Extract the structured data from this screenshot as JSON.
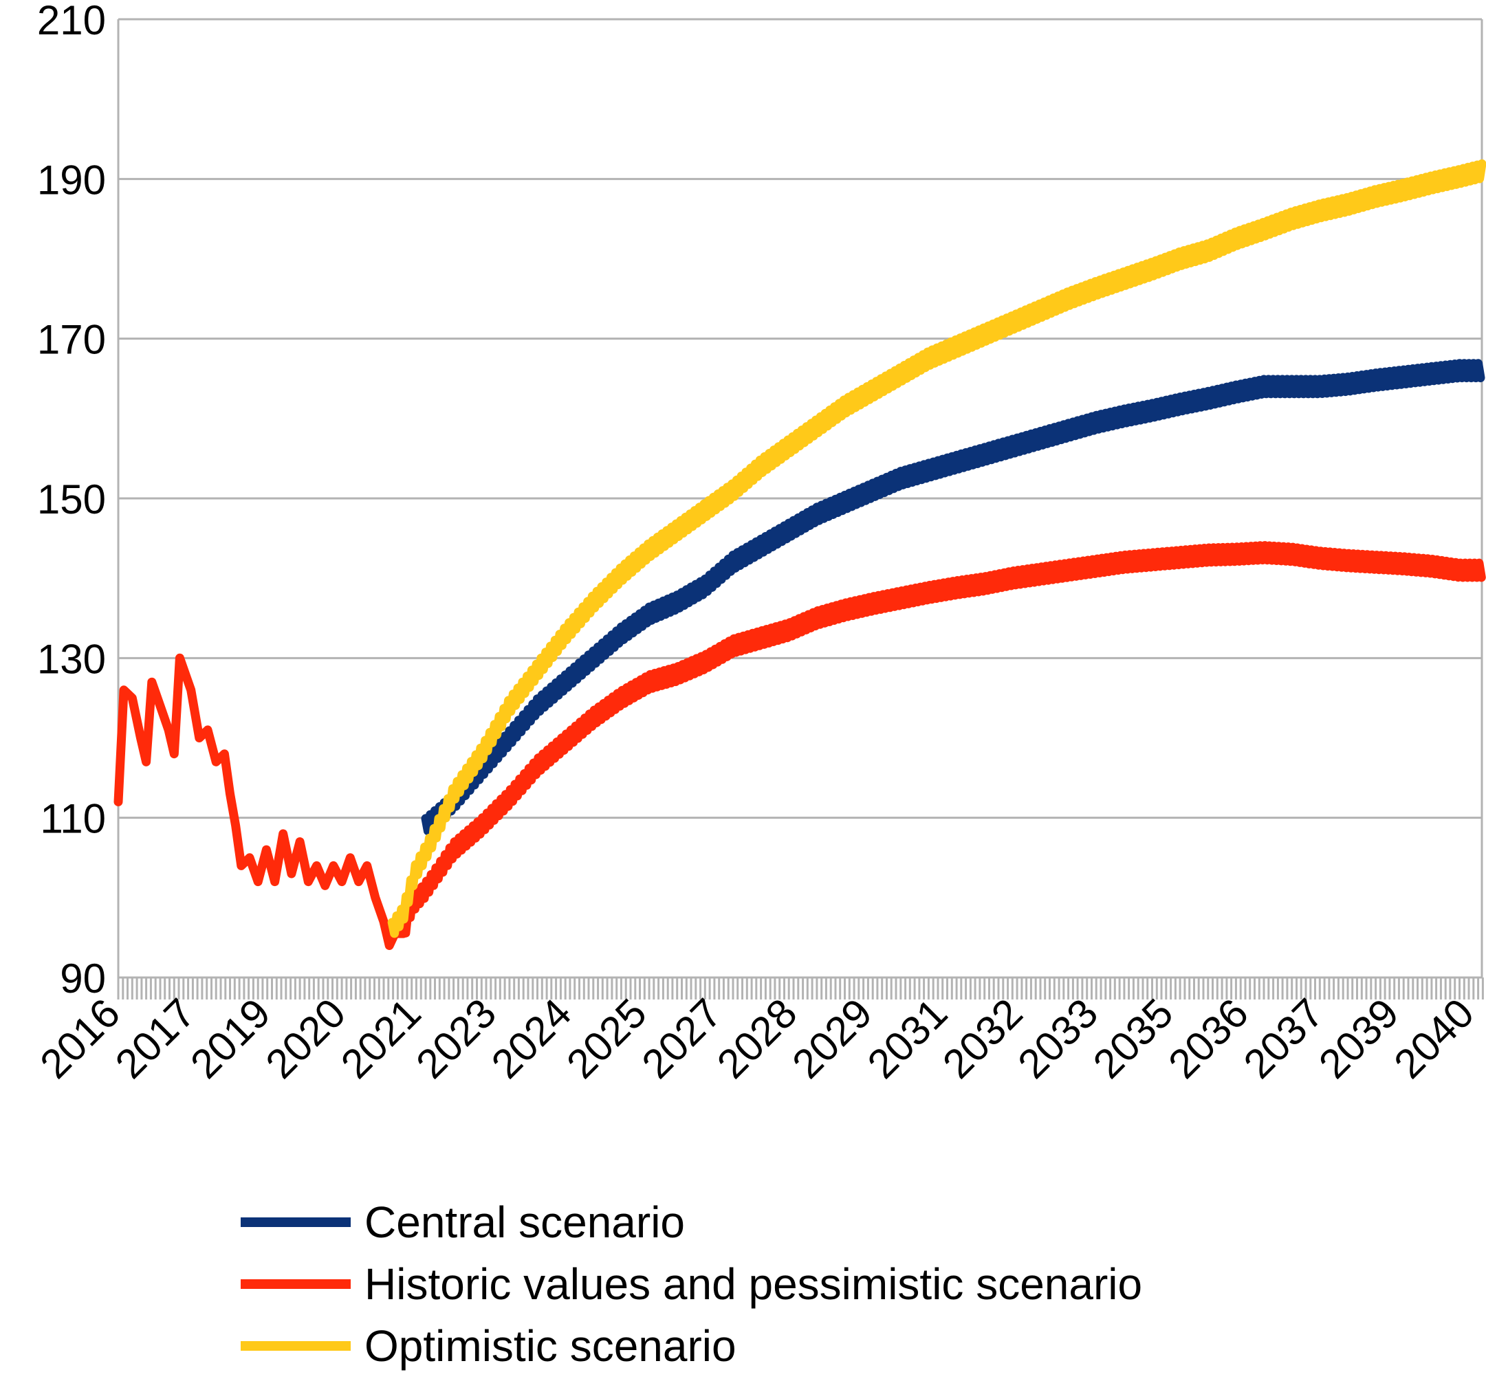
{
  "chart_data": {
    "type": "line",
    "title": "",
    "xlabel": "",
    "ylabel": "",
    "ylim": [
      90,
      210
    ],
    "yticks": [
      90,
      110,
      130,
      150,
      170,
      190,
      210
    ],
    "xlim": [
      2016.0,
      2040.4
    ],
    "x_tick_labels": [
      "2016",
      "2017",
      "2019",
      "2020",
      "2021",
      "2023",
      "2024",
      "2025",
      "2027",
      "2028",
      "2029",
      "2031",
      "2032",
      "2033",
      "2035",
      "2036",
      "2037",
      "2039",
      "2040"
    ],
    "grid": "horizontal",
    "legend_position": "bottom",
    "series": [
      {
        "name": "Central scenario",
        "color": "#0b3277",
        "points": [
          [
            2021.5,
            109
          ],
          [
            2022.0,
            112
          ],
          [
            2022.5,
            116
          ],
          [
            2023.0,
            120
          ],
          [
            2023.5,
            124
          ],
          [
            2024.0,
            127
          ],
          [
            2024.5,
            130
          ],
          [
            2025.0,
            133
          ],
          [
            2025.5,
            135.5
          ],
          [
            2026.0,
            137
          ],
          [
            2026.5,
            139
          ],
          [
            2027.0,
            142
          ],
          [
            2027.5,
            144
          ],
          [
            2028.0,
            146
          ],
          [
            2028.5,
            148
          ],
          [
            2029.0,
            149.5
          ],
          [
            2029.5,
            151
          ],
          [
            2030.0,
            152.5
          ],
          [
            2030.5,
            153.5
          ],
          [
            2031.0,
            154.5
          ],
          [
            2031.5,
            155.5
          ],
          [
            2032.0,
            156.5
          ],
          [
            2032.5,
            157.5
          ],
          [
            2033.0,
            158.5
          ],
          [
            2033.5,
            159.5
          ],
          [
            2034.0,
            160.3
          ],
          [
            2034.5,
            161
          ],
          [
            2035.0,
            161.8
          ],
          [
            2035.5,
            162.5
          ],
          [
            2036.0,
            163.3
          ],
          [
            2036.5,
            164
          ],
          [
            2037.0,
            164
          ],
          [
            2037.5,
            164
          ],
          [
            2038.0,
            164.3
          ],
          [
            2038.5,
            164.8
          ],
          [
            2039.0,
            165.2
          ],
          [
            2039.5,
            165.6
          ],
          [
            2040.0,
            166
          ],
          [
            2040.4,
            166
          ]
        ]
      },
      {
        "name": "Historic values and pessimistic scenario",
        "color": "#ff2a0a",
        "points": [
          [
            2016.0,
            112
          ],
          [
            2016.1,
            126
          ],
          [
            2016.25,
            125
          ],
          [
            2016.4,
            120
          ],
          [
            2016.5,
            117
          ],
          [
            2016.6,
            127
          ],
          [
            2016.75,
            124
          ],
          [
            2016.9,
            121
          ],
          [
            2017.0,
            118
          ],
          [
            2017.1,
            130
          ],
          [
            2017.3,
            126
          ],
          [
            2017.45,
            120
          ],
          [
            2017.6,
            121
          ],
          [
            2017.75,
            117
          ],
          [
            2017.9,
            118
          ],
          [
            2018.0,
            113
          ],
          [
            2018.1,
            109
          ],
          [
            2018.2,
            104
          ],
          [
            2018.35,
            105
          ],
          [
            2018.5,
            102
          ],
          [
            2018.65,
            106
          ],
          [
            2018.8,
            102
          ],
          [
            2018.95,
            108
          ],
          [
            2019.1,
            103
          ],
          [
            2019.25,
            107
          ],
          [
            2019.4,
            102
          ],
          [
            2019.55,
            104
          ],
          [
            2019.7,
            101.5
          ],
          [
            2019.85,
            104
          ],
          [
            2020.0,
            102
          ],
          [
            2020.15,
            105
          ],
          [
            2020.3,
            102
          ],
          [
            2020.45,
            104
          ],
          [
            2020.6,
            100
          ],
          [
            2020.75,
            97
          ],
          [
            2020.85,
            94
          ],
          [
            2020.95,
            95.5
          ],
          [
            2021.1,
            95.5
          ],
          [
            2021.25,
            99
          ],
          [
            2021.5,
            101
          ],
          [
            2021.75,
            103.5
          ],
          [
            2022.0,
            106
          ],
          [
            2022.5,
            109
          ],
          [
            2023.0,
            112.5
          ],
          [
            2023.5,
            116.5
          ],
          [
            2024.0,
            119.5
          ],
          [
            2024.5,
            122.5
          ],
          [
            2025.0,
            125
          ],
          [
            2025.5,
            127
          ],
          [
            2026.0,
            128
          ],
          [
            2026.5,
            129.5
          ],
          [
            2027.0,
            131.5
          ],
          [
            2027.5,
            132.5
          ],
          [
            2028.0,
            133.5
          ],
          [
            2028.5,
            135
          ],
          [
            2029.0,
            136
          ],
          [
            2029.5,
            136.8
          ],
          [
            2030.0,
            137.5
          ],
          [
            2030.5,
            138.2
          ],
          [
            2031.0,
            138.8
          ],
          [
            2031.5,
            139.3
          ],
          [
            2032.0,
            140
          ],
          [
            2032.5,
            140.5
          ],
          [
            2033.0,
            141
          ],
          [
            2033.5,
            141.5
          ],
          [
            2034.0,
            142
          ],
          [
            2034.5,
            142.3
          ],
          [
            2035.0,
            142.6
          ],
          [
            2035.5,
            142.9
          ],
          [
            2036.0,
            143
          ],
          [
            2036.5,
            143.2
          ],
          [
            2037.0,
            143
          ],
          [
            2037.5,
            142.5
          ],
          [
            2038.0,
            142.2
          ],
          [
            2038.5,
            142
          ],
          [
            2039.0,
            141.8
          ],
          [
            2039.5,
            141.5
          ],
          [
            2040.0,
            141
          ],
          [
            2040.4,
            141
          ]
        ]
      },
      {
        "name": "Optimistic scenario",
        "color": "#ffc919",
        "points": [
          [
            2020.9,
            96
          ],
          [
            2021.1,
            98
          ],
          [
            2021.3,
            103
          ],
          [
            2021.6,
            107
          ],
          [
            2022.0,
            113
          ],
          [
            2022.5,
            118
          ],
          [
            2023.0,
            124
          ],
          [
            2023.5,
            128.5
          ],
          [
            2024.0,
            133
          ],
          [
            2024.5,
            137
          ],
          [
            2025.0,
            140.5
          ],
          [
            2025.5,
            143.5
          ],
          [
            2026.0,
            146
          ],
          [
            2026.5,
            148.5
          ],
          [
            2027.0,
            151
          ],
          [
            2027.5,
            154
          ],
          [
            2028.0,
            156.5
          ],
          [
            2028.5,
            159
          ],
          [
            2029.0,
            161.5
          ],
          [
            2029.5,
            163.5
          ],
          [
            2030.0,
            165.5
          ],
          [
            2030.5,
            167.5
          ],
          [
            2031.0,
            169
          ],
          [
            2031.5,
            170.5
          ],
          [
            2032.0,
            172
          ],
          [
            2032.5,
            173.5
          ],
          [
            2033.0,
            175
          ],
          [
            2033.5,
            176.3
          ],
          [
            2034.0,
            177.5
          ],
          [
            2034.5,
            178.7
          ],
          [
            2035.0,
            180
          ],
          [
            2035.5,
            181
          ],
          [
            2036.0,
            182.5
          ],
          [
            2036.5,
            183.7
          ],
          [
            2037.0,
            185
          ],
          [
            2037.5,
            186
          ],
          [
            2038.0,
            186.8
          ],
          [
            2038.5,
            187.8
          ],
          [
            2039.0,
            188.6
          ],
          [
            2039.5,
            189.5
          ],
          [
            2040.0,
            190.3
          ],
          [
            2040.4,
            191
          ]
        ]
      }
    ]
  }
}
